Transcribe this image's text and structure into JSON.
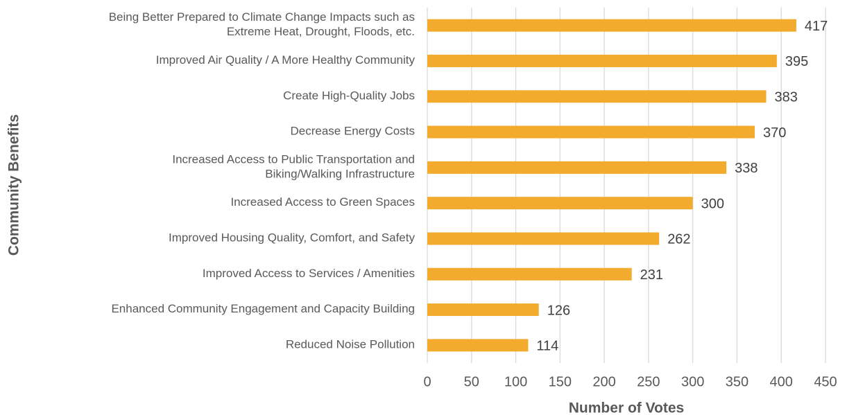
{
  "chart_data": {
    "type": "barh",
    "xlabel": "Number of Votes",
    "ylabel": "Community Benefits",
    "categories": [
      "Being Better Prepared to Climate Change Impacts such as\nExtreme Heat, Drought, Floods, etc.",
      "Improved Air Quality / A More Healthy Community",
      "Create High-Quality Jobs",
      "Decrease Energy Costs",
      "Increased Access to Public Transportation and\nBiking/Walking Infrastructure",
      "Increased Access to Green Spaces",
      "Improved Housing Quality, Comfort, and Safety",
      "Improved Access to Services / Amenities",
      "Enhanced Community Engagement and Capacity Building",
      "Reduced Noise Pollution"
    ],
    "values": [
      417,
      395,
      383,
      370,
      338,
      300,
      262,
      231,
      126,
      114
    ],
    "color": "#f2ab2c",
    "xlim": [
      0,
      450
    ],
    "xticks": [
      0,
      50,
      100,
      150,
      200,
      250,
      300,
      350,
      400,
      450
    ],
    "grid": true
  }
}
